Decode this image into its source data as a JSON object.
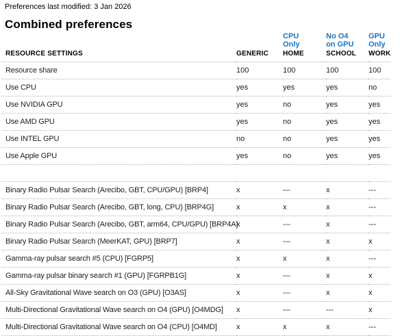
{
  "header": {
    "last_modified": "Preferences last modified: 3 Jan 2026",
    "title": "Combined preferences"
  },
  "table": {
    "label_header": "RESOURCE SETTINGS",
    "venues": [
      {
        "name": "GENERIC",
        "desc_line1": "",
        "desc_line2": ""
      },
      {
        "name": "HOME",
        "desc_line1": "CPU",
        "desc_line2": "Only"
      },
      {
        "name": "SCHOOL",
        "desc_line1": "No O4",
        "desc_line2": "on GPU"
      },
      {
        "name": "WORK",
        "desc_line1": "GPU",
        "desc_line2": "Only"
      }
    ],
    "rows": [
      {
        "label": "Resource share",
        "values": [
          "100",
          "100",
          "100",
          "100"
        ],
        "separator": false
      },
      {
        "label": "Use CPU",
        "values": [
          "yes",
          "yes",
          "yes",
          "no"
        ],
        "separator": false
      },
      {
        "label": "Use NVIDIA GPU",
        "values": [
          "yes",
          "no",
          "yes",
          "yes"
        ],
        "separator": false
      },
      {
        "label": "Use AMD GPU",
        "values": [
          "yes",
          "no",
          "yes",
          "yes"
        ],
        "separator": false
      },
      {
        "label": "Use INTEL GPU",
        "values": [
          "no",
          "no",
          "yes",
          "yes"
        ],
        "separator": false
      },
      {
        "label": "Use Apple GPU",
        "values": [
          "yes",
          "no",
          "yes",
          "yes"
        ],
        "separator": false
      },
      {
        "label": "",
        "values": [
          "",
          "",
          "",
          ""
        ],
        "separator": true
      },
      {
        "label": "Binary Radio Pulsar Search (Arecibo, GBT, CPU/GPU) [BRP4]",
        "values": [
          "x",
          "---",
          "x",
          "---"
        ],
        "separator": false
      },
      {
        "label": "Binary Radio Pulsar Search (Arecibo, GBT, long, CPU) [BRP4G]",
        "values": [
          "x",
          "x",
          "x",
          "---"
        ],
        "separator": false
      },
      {
        "label": "Binary Radio Pulsar Search (Arecibo, GBT, arm64, CPU/GPU) [BRP4A]",
        "values": [
          "x",
          "---",
          "x",
          "---"
        ],
        "separator": false
      },
      {
        "label": "Binary Radio Pulsar Search (MeerKAT, GPU) [BRP7]",
        "values": [
          "x",
          "---",
          "x",
          "x"
        ],
        "separator": false
      },
      {
        "label": "Gamma-ray pulsar search #5 (CPU) [FGRP5]",
        "values": [
          "x",
          "x",
          "x",
          "---"
        ],
        "separator": false
      },
      {
        "label": "Gamma-ray pulsar binary search #1 (GPU) [FGRPB1G]",
        "values": [
          "x",
          "---",
          "x",
          "x"
        ],
        "separator": false
      },
      {
        "label": "All-Sky Gravitational Wave search on O3 (GPU) [O3AS]",
        "values": [
          "x",
          "---",
          "x",
          "x"
        ],
        "separator": false
      },
      {
        "label": "Multi-Directional Gravitational Wave search on O4 (GPU) [O4MDG]",
        "values": [
          "x",
          "---",
          "---",
          "x"
        ],
        "separator": false
      },
      {
        "label": "Multi-Directional Gravitational Wave search on O4 (CPU) [O4MD]",
        "values": [
          "x",
          "x",
          "x",
          "---"
        ],
        "separator": false
      }
    ]
  },
  "colors": {
    "link_blue": "#1d74bb",
    "text": "#1c1c1c",
    "dotted_border": "#b0b0b0"
  }
}
